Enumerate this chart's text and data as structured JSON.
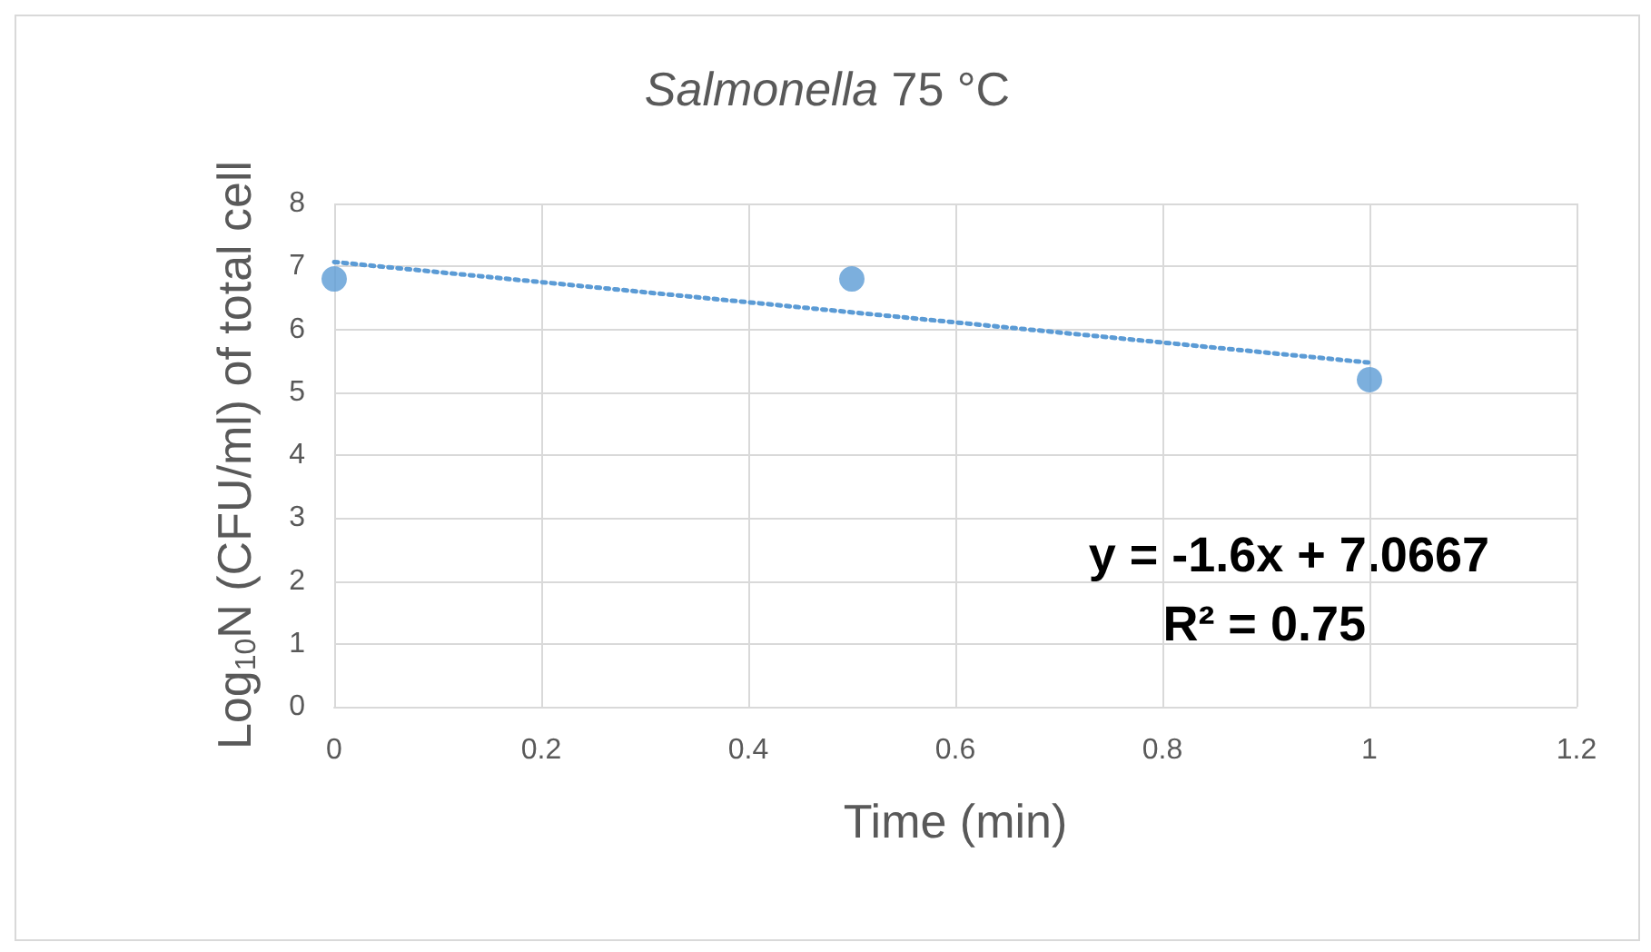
{
  "chart_data": {
    "type": "scatter",
    "title": "Salmonella 75 °C",
    "xlabel": "Time (min)",
    "ylabel": "Log$_{10}$N (CFU/ml) of total cell",
    "series": [
      {
        "color": "#5b9bd5",
        "x": [
          0,
          0.5,
          1
        ],
        "values": [
          6.8,
          6.8,
          5.2
        ]
      },
      {
        "type": "line",
        "color": "#5b9bd5",
        "x": [
          0,
          1
        ],
        "values": [
          7.07,
          5.47
        ],
        "line_style": "dotted",
        "marker": "none"
      }
    ],
    "annotations": [
      "y = -1.6x + 7.0667",
      "R² = 0.75"
    ],
    "xlim": [
      0,
      1.2
    ],
    "xticks": [
      0,
      0.2,
      0.4,
      0.6,
      0.8,
      1,
      1.2
    ],
    "ylim": [
      0,
      8
    ],
    "yticks": [
      0,
      1,
      2,
      3,
      4,
      5,
      6,
      7,
      8
    ],
    "grid": true,
    "marker": "circle"
  }
}
